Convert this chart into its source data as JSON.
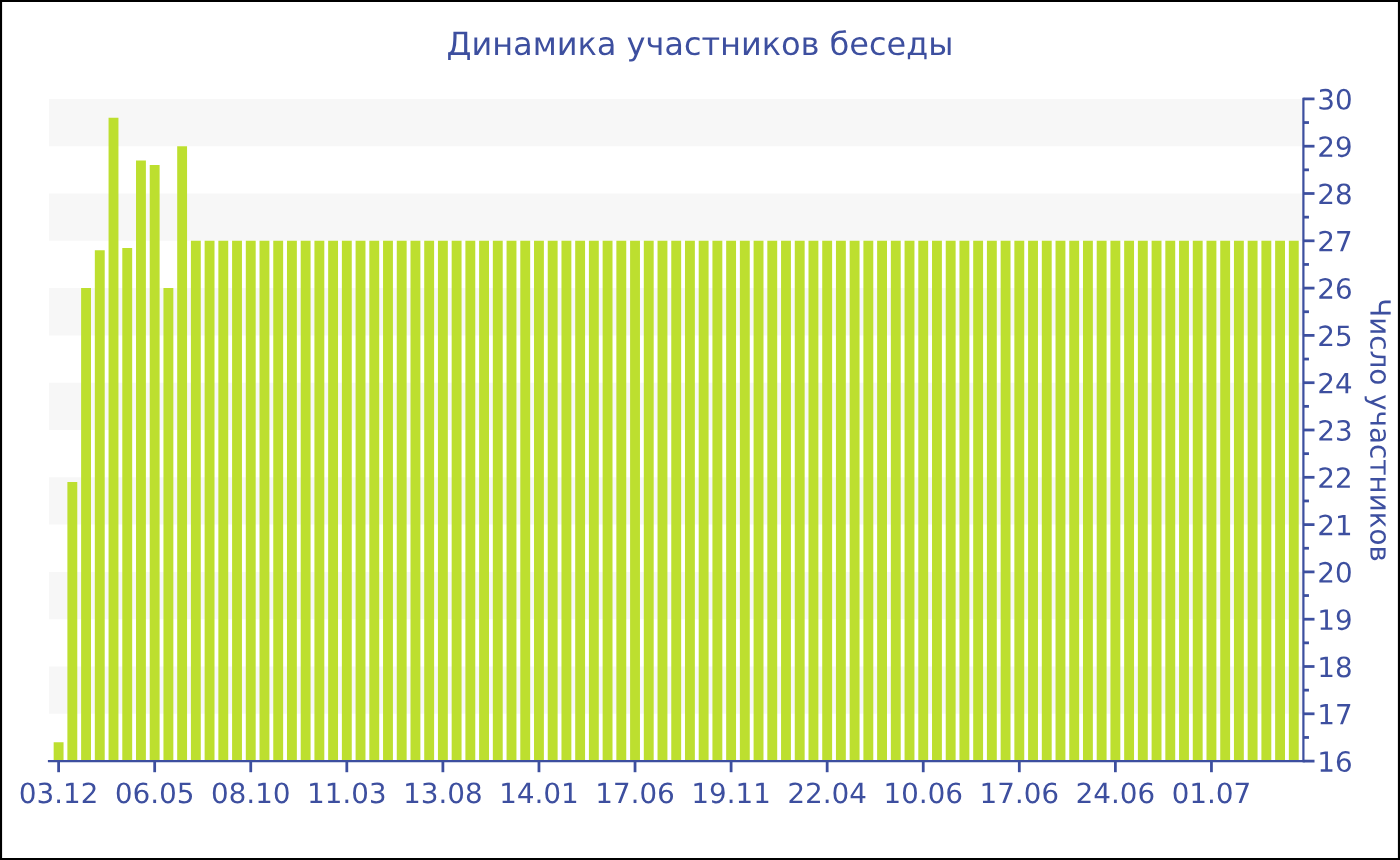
{
  "chart_data": {
    "type": "bar",
    "title": "Динамика участников беседы",
    "ylabel": "Число участников",
    "categories": [
      "03.12",
      null,
      null,
      null,
      null,
      null,
      null,
      "06.05",
      null,
      null,
      null,
      null,
      null,
      null,
      "08.10",
      null,
      null,
      null,
      null,
      null,
      null,
      "11.03",
      null,
      null,
      null,
      null,
      null,
      null,
      "13.08",
      null,
      null,
      null,
      null,
      null,
      null,
      "14.01",
      null,
      null,
      null,
      null,
      null,
      null,
      "17.06",
      null,
      null,
      null,
      null,
      null,
      null,
      "19.11",
      null,
      null,
      null,
      null,
      null,
      null,
      "22.04",
      null,
      null,
      null,
      null,
      null,
      null,
      "10.06",
      null,
      null,
      null,
      null,
      null,
      null,
      "17.06",
      null,
      null,
      null,
      null,
      null,
      null,
      "24.06",
      null,
      null,
      null,
      null,
      null,
      null,
      "01.07",
      null,
      null,
      null,
      null,
      null,
      null
    ],
    "values": [
      16.4,
      21.9,
      26,
      26.8,
      29.6,
      26.85,
      28.7,
      28.6,
      26,
      29,
      27,
      27,
      27,
      27,
      27,
      27,
      27,
      27,
      27,
      27,
      27,
      27,
      27,
      27,
      27,
      27,
      27,
      27,
      27,
      27,
      27,
      27,
      27,
      27,
      27,
      27,
      27,
      27,
      27,
      27,
      27,
      27,
      27,
      27,
      27,
      27,
      27,
      27,
      27,
      27,
      27,
      27,
      27,
      27,
      27,
      27,
      27,
      27,
      27,
      27,
      27,
      27,
      27,
      27,
      27,
      27,
      27,
      27,
      27,
      27,
      27,
      27,
      27,
      27,
      27,
      27,
      27,
      27,
      27,
      27,
      27,
      27,
      27,
      27,
      27,
      27,
      27,
      27,
      27,
      27,
      27
    ],
    "color": "#bddf2f",
    "ylim": [
      16,
      30
    ],
    "yticks": [
      16,
      17,
      18,
      19,
      20,
      21,
      22,
      23,
      24,
      25,
      26,
      27,
      28,
      29,
      30
    ],
    "bands": [
      {
        "axis": "y",
        "from": 29,
        "to": 30,
        "color": "#f7f7f7"
      },
      {
        "axis": "y",
        "from": 27,
        "to": 28,
        "color": "#f7f7f7"
      },
      {
        "axis": "y",
        "from": 25,
        "to": 26,
        "color": "#f7f7f7"
      },
      {
        "axis": "y",
        "from": 23,
        "to": 24,
        "color": "#f7f7f7"
      },
      {
        "axis": "y",
        "from": 21,
        "to": 22,
        "color": "#f7f7f7"
      },
      {
        "axis": "y",
        "from": 19,
        "to": 20,
        "color": "#f7f7f7"
      },
      {
        "axis": "y",
        "from": 17,
        "to": 18,
        "color": "#f7f7f7"
      }
    ],
    "grid": false
  }
}
